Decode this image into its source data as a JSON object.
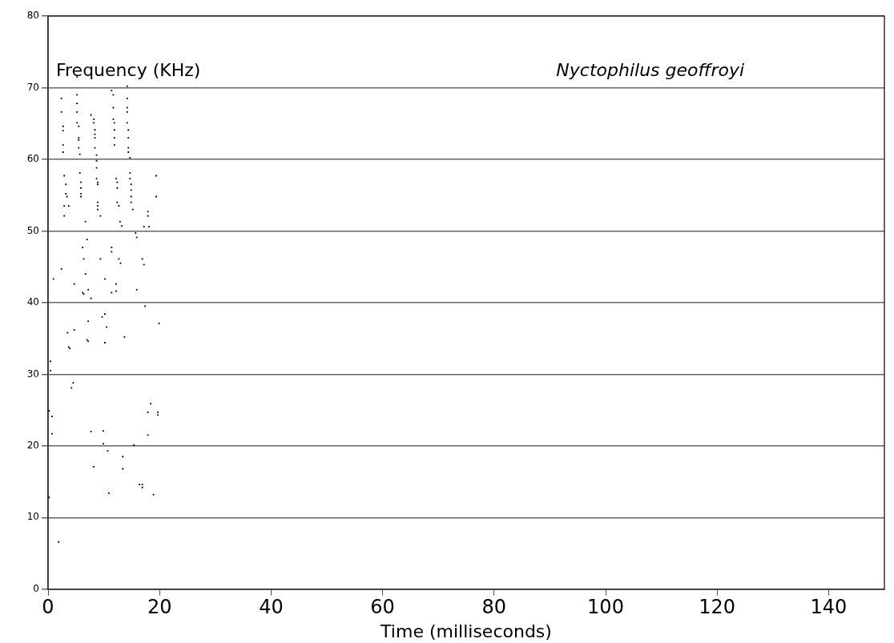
{
  "chart_data": {
    "type": "scatter",
    "title": "Nyctophilus geoffroyi",
    "xlabel": "Time (milliseconds)",
    "ylabel": "Frequency (KHz)",
    "xlim": [
      0,
      150
    ],
    "xticks": [
      0,
      20,
      40,
      60,
      80,
      100,
      120,
      140
    ],
    "ylim": [
      0,
      80
    ],
    "yticks": [
      0,
      10,
      20,
      30,
      40,
      50,
      60,
      70,
      80
    ],
    "grid": "y",
    "marker": "square",
    "series": [
      {
        "color": "#000000",
        "x": [
          2.4,
          2.4,
          2.7,
          2.7,
          2.7,
          2.7,
          5.2,
          5.2,
          5.2,
          5.2,
          5.5,
          5.5,
          5.5,
          5.5,
          5.7,
          5.2,
          7.7,
          8.2,
          8.2,
          8.4,
          8.4,
          8.4,
          8.4,
          8.7,
          8.7,
          8.7,
          11.4,
          11.7,
          11.7,
          11.7,
          11.9,
          11.9,
          11.9,
          11.9,
          14.2,
          14.2,
          14.2,
          14.2,
          14.2,
          14.4,
          14.4,
          14.4,
          14.4,
          14.7,
          2.9,
          3.2,
          3.2,
          3.4,
          2.9,
          3.7,
          2.9,
          5.7,
          5.9,
          5.9,
          5.9,
          5.9,
          6.7,
          8.7,
          8.9,
          8.9,
          8.9,
          8.9,
          8.9,
          9.4,
          12.2,
          12.4,
          12.4,
          12.4,
          12.7,
          12.9,
          13.2,
          14.7,
          14.7,
          14.9,
          14.9,
          14.9,
          14.9,
          15.2,
          17.9,
          17.9,
          17.2,
          18.1,
          19.4,
          19.4,
          15.7,
          15.9,
          7.0,
          6.2,
          11.4,
          11.4,
          6.4,
          9.4,
          12.7,
          13.0,
          16.9,
          17.2,
          2.4,
          6.7,
          0.96,
          4.7,
          10.2,
          12.2,
          6.2,
          6.4,
          7.2,
          7.7,
          11.4,
          12.2,
          15.9,
          17.4,
          10.2,
          9.7,
          7.2,
          10.5,
          19.9,
          4.7,
          3.5,
          13.7,
          7.0,
          7.2,
          10.2,
          3.7,
          3.9,
          0.43,
          0.43,
          4.5,
          4.2,
          18.4,
          0.19,
          0.72,
          0.72,
          17.9,
          19.7,
          19.7,
          7.7,
          9.9,
          9.9,
          17.9,
          15.4,
          10.7,
          13.4,
          8.2,
          13.4,
          16.4,
          16.9,
          16.9,
          10.9,
          18.9,
          0.19,
          1.9
        ],
        "values": [
          68.5,
          66.6,
          64.6,
          64.0,
          62.0,
          61.0,
          69.0,
          67.8,
          66.6,
          65.1,
          64.6,
          63.0,
          62.7,
          61.6,
          60.7,
          71.5,
          66.2,
          65.6,
          65.1,
          64.1,
          63.5,
          63.0,
          61.6,
          60.6,
          59.8,
          58.8,
          69.6,
          69.0,
          67.2,
          65.6,
          65.1,
          64.1,
          63.0,
          62.0,
          70.2,
          68.5,
          67.2,
          66.6,
          65.1,
          64.1,
          63.0,
          61.6,
          61.0,
          60.2,
          57.7,
          56.5,
          55.2,
          54.8,
          53.5,
          53.5,
          52.1,
          58.1,
          56.8,
          56.0,
          55.2,
          54.8,
          51.3,
          57.3,
          56.8,
          56.5,
          54.0,
          53.5,
          53.0,
          52.1,
          57.3,
          56.8,
          56.0,
          54.0,
          53.5,
          51.3,
          50.7,
          58.1,
          57.3,
          56.5,
          55.7,
          54.8,
          54.0,
          53.0,
          52.7,
          52.1,
          50.6,
          50.6,
          57.7,
          54.8,
          49.7,
          49.1,
          48.8,
          47.7,
          47.7,
          47.1,
          46.1,
          46.1,
          46.1,
          45.5,
          46.1,
          45.3,
          44.7,
          44.0,
          43.3,
          42.6,
          43.3,
          42.6,
          41.4,
          41.2,
          41.8,
          40.6,
          41.4,
          41.6,
          41.8,
          39.5,
          38.4,
          38.0,
          37.4,
          36.6,
          37.1,
          36.2,
          35.8,
          35.2,
          34.8,
          34.6,
          34.4,
          33.8,
          33.6,
          31.8,
          30.5,
          28.8,
          28.1,
          25.9,
          24.9,
          24.1,
          21.7,
          24.7,
          24.7,
          24.3,
          22.0,
          22.1,
          20.3,
          21.5,
          20.1,
          19.3,
          18.5,
          17.1,
          16.8,
          14.6,
          14.6,
          14.2,
          13.4,
          13.2,
          12.8,
          6.6
        ]
      }
    ]
  }
}
